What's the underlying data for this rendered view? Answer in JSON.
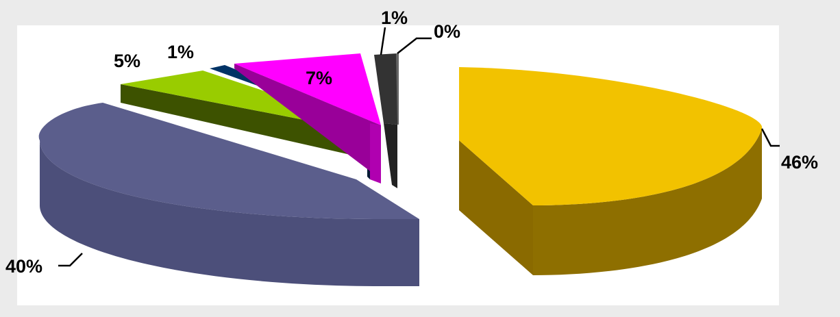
{
  "chart_data": {
    "type": "pie",
    "title": "",
    "style": "exploded 3d pie",
    "slices": [
      {
        "label": "46%",
        "value": 46,
        "color": "#f2c200"
      },
      {
        "label": "40%",
        "value": 40,
        "color": "#5b5e8c"
      },
      {
        "label": "5%",
        "value": 5,
        "color": "#99cc00"
      },
      {
        "label": "1%",
        "value": 1,
        "color": "#003366"
      },
      {
        "label": "7%",
        "value": 7,
        "color": "#ff00ff"
      },
      {
        "label": "1%",
        "value": 1,
        "color": "#333333"
      },
      {
        "label": "0%",
        "value": 0,
        "color": "#666666"
      }
    ]
  },
  "colors": {
    "page_background": "#ebebeb",
    "plot_background": "#ffffff"
  }
}
